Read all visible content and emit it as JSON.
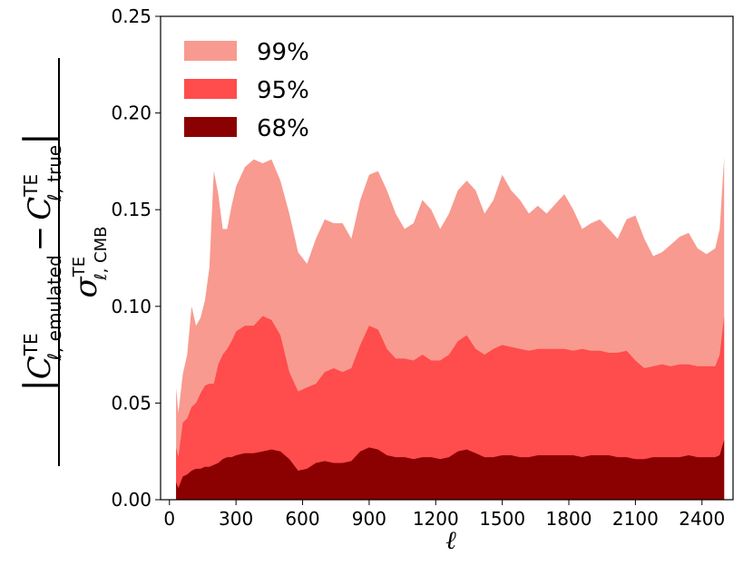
{
  "chart_data": {
    "type": "area",
    "title": "",
    "xlabel": "ℓ",
    "ylabel": {
      "numerator_emulated": "C",
      "numerator_emulated_sup": "TE",
      "numerator_emulated_sub": "ℓ, emulated",
      "minus": "−",
      "numerator_true": "C",
      "numerator_true_sup": "TE",
      "numerator_true_sub": "ℓ, true",
      "denominator": "σ",
      "denominator_sup": "TE",
      "denominator_sub": "ℓ, CMB"
    },
    "xlim": [
      -40,
      2540
    ],
    "ylim": [
      0,
      0.25
    ],
    "x_ticks": [
      "0",
      "300",
      "600",
      "900",
      "1200",
      "1500",
      "1800",
      "2100",
      "2400"
    ],
    "x_tick_values": [
      0,
      300,
      600,
      900,
      1200,
      1500,
      1800,
      2100,
      2400
    ],
    "y_ticks": [
      "0.00",
      "0.05",
      "0.10",
      "0.15",
      "0.20",
      "0.25"
    ],
    "y_tick_values": [
      0,
      0.05,
      0.1,
      0.15,
      0.2,
      0.25
    ],
    "grid": false,
    "legend_position": "top-left",
    "x": [
      30,
      40,
      60,
      80,
      100,
      120,
      140,
      160,
      180,
      200,
      220,
      240,
      260,
      280,
      300,
      340,
      380,
      420,
      460,
      500,
      540,
      580,
      620,
      660,
      700,
      740,
      780,
      820,
      860,
      900,
      940,
      980,
      1020,
      1060,
      1100,
      1140,
      1180,
      1220,
      1260,
      1300,
      1340,
      1380,
      1420,
      1460,
      1500,
      1540,
      1580,
      1620,
      1660,
      1700,
      1740,
      1780,
      1820,
      1860,
      1900,
      1940,
      1980,
      2020,
      2060,
      2100,
      2140,
      2180,
      2220,
      2260,
      2300,
      2340,
      2380,
      2420,
      2460,
      2480,
      2500
    ],
    "series": [
      {
        "name": "99%",
        "color": "#f89a8f",
        "values": [
          0.058,
          0.045,
          0.065,
          0.075,
          0.1,
          0.09,
          0.094,
          0.103,
          0.12,
          0.17,
          0.158,
          0.14,
          0.14,
          0.152,
          0.162,
          0.172,
          0.176,
          0.174,
          0.176,
          0.165,
          0.148,
          0.128,
          0.122,
          0.135,
          0.145,
          0.143,
          0.143,
          0.135,
          0.155,
          0.168,
          0.17,
          0.16,
          0.148,
          0.14,
          0.143,
          0.155,
          0.15,
          0.14,
          0.148,
          0.16,
          0.165,
          0.16,
          0.148,
          0.155,
          0.168,
          0.16,
          0.155,
          0.148,
          0.152,
          0.148,
          0.153,
          0.158,
          0.15,
          0.14,
          0.143,
          0.145,
          0.14,
          0.135,
          0.145,
          0.147,
          0.135,
          0.126,
          0.128,
          0.132,
          0.136,
          0.138,
          0.13,
          0.127,
          0.13,
          0.14,
          0.177
        ]
      },
      {
        "name": "95%",
        "color": "#ff4c4c",
        "values": [
          0.027,
          0.022,
          0.04,
          0.042,
          0.048,
          0.05,
          0.055,
          0.059,
          0.06,
          0.06,
          0.07,
          0.075,
          0.078,
          0.082,
          0.087,
          0.09,
          0.09,
          0.095,
          0.093,
          0.085,
          0.066,
          0.056,
          0.058,
          0.06,
          0.066,
          0.068,
          0.066,
          0.068,
          0.08,
          0.09,
          0.088,
          0.078,
          0.073,
          0.073,
          0.072,
          0.075,
          0.072,
          0.072,
          0.075,
          0.082,
          0.085,
          0.078,
          0.075,
          0.078,
          0.08,
          0.079,
          0.078,
          0.077,
          0.078,
          0.078,
          0.078,
          0.078,
          0.077,
          0.078,
          0.077,
          0.077,
          0.076,
          0.076,
          0.077,
          0.072,
          0.068,
          0.069,
          0.07,
          0.069,
          0.07,
          0.07,
          0.069,
          0.069,
          0.069,
          0.075,
          0.095
        ]
      },
      {
        "name": "68%",
        "color": "#8b0000",
        "values": [
          0.009,
          0.006,
          0.012,
          0.013,
          0.015,
          0.016,
          0.016,
          0.017,
          0.017,
          0.018,
          0.019,
          0.021,
          0.022,
          0.022,
          0.023,
          0.024,
          0.024,
          0.025,
          0.026,
          0.025,
          0.021,
          0.015,
          0.016,
          0.019,
          0.02,
          0.019,
          0.019,
          0.02,
          0.025,
          0.027,
          0.026,
          0.023,
          0.022,
          0.022,
          0.021,
          0.022,
          0.022,
          0.021,
          0.022,
          0.025,
          0.026,
          0.024,
          0.022,
          0.022,
          0.023,
          0.023,
          0.022,
          0.022,
          0.023,
          0.023,
          0.023,
          0.023,
          0.023,
          0.022,
          0.023,
          0.023,
          0.023,
          0.022,
          0.022,
          0.021,
          0.021,
          0.022,
          0.022,
          0.022,
          0.022,
          0.023,
          0.022,
          0.022,
          0.022,
          0.023,
          0.031
        ]
      }
    ]
  }
}
